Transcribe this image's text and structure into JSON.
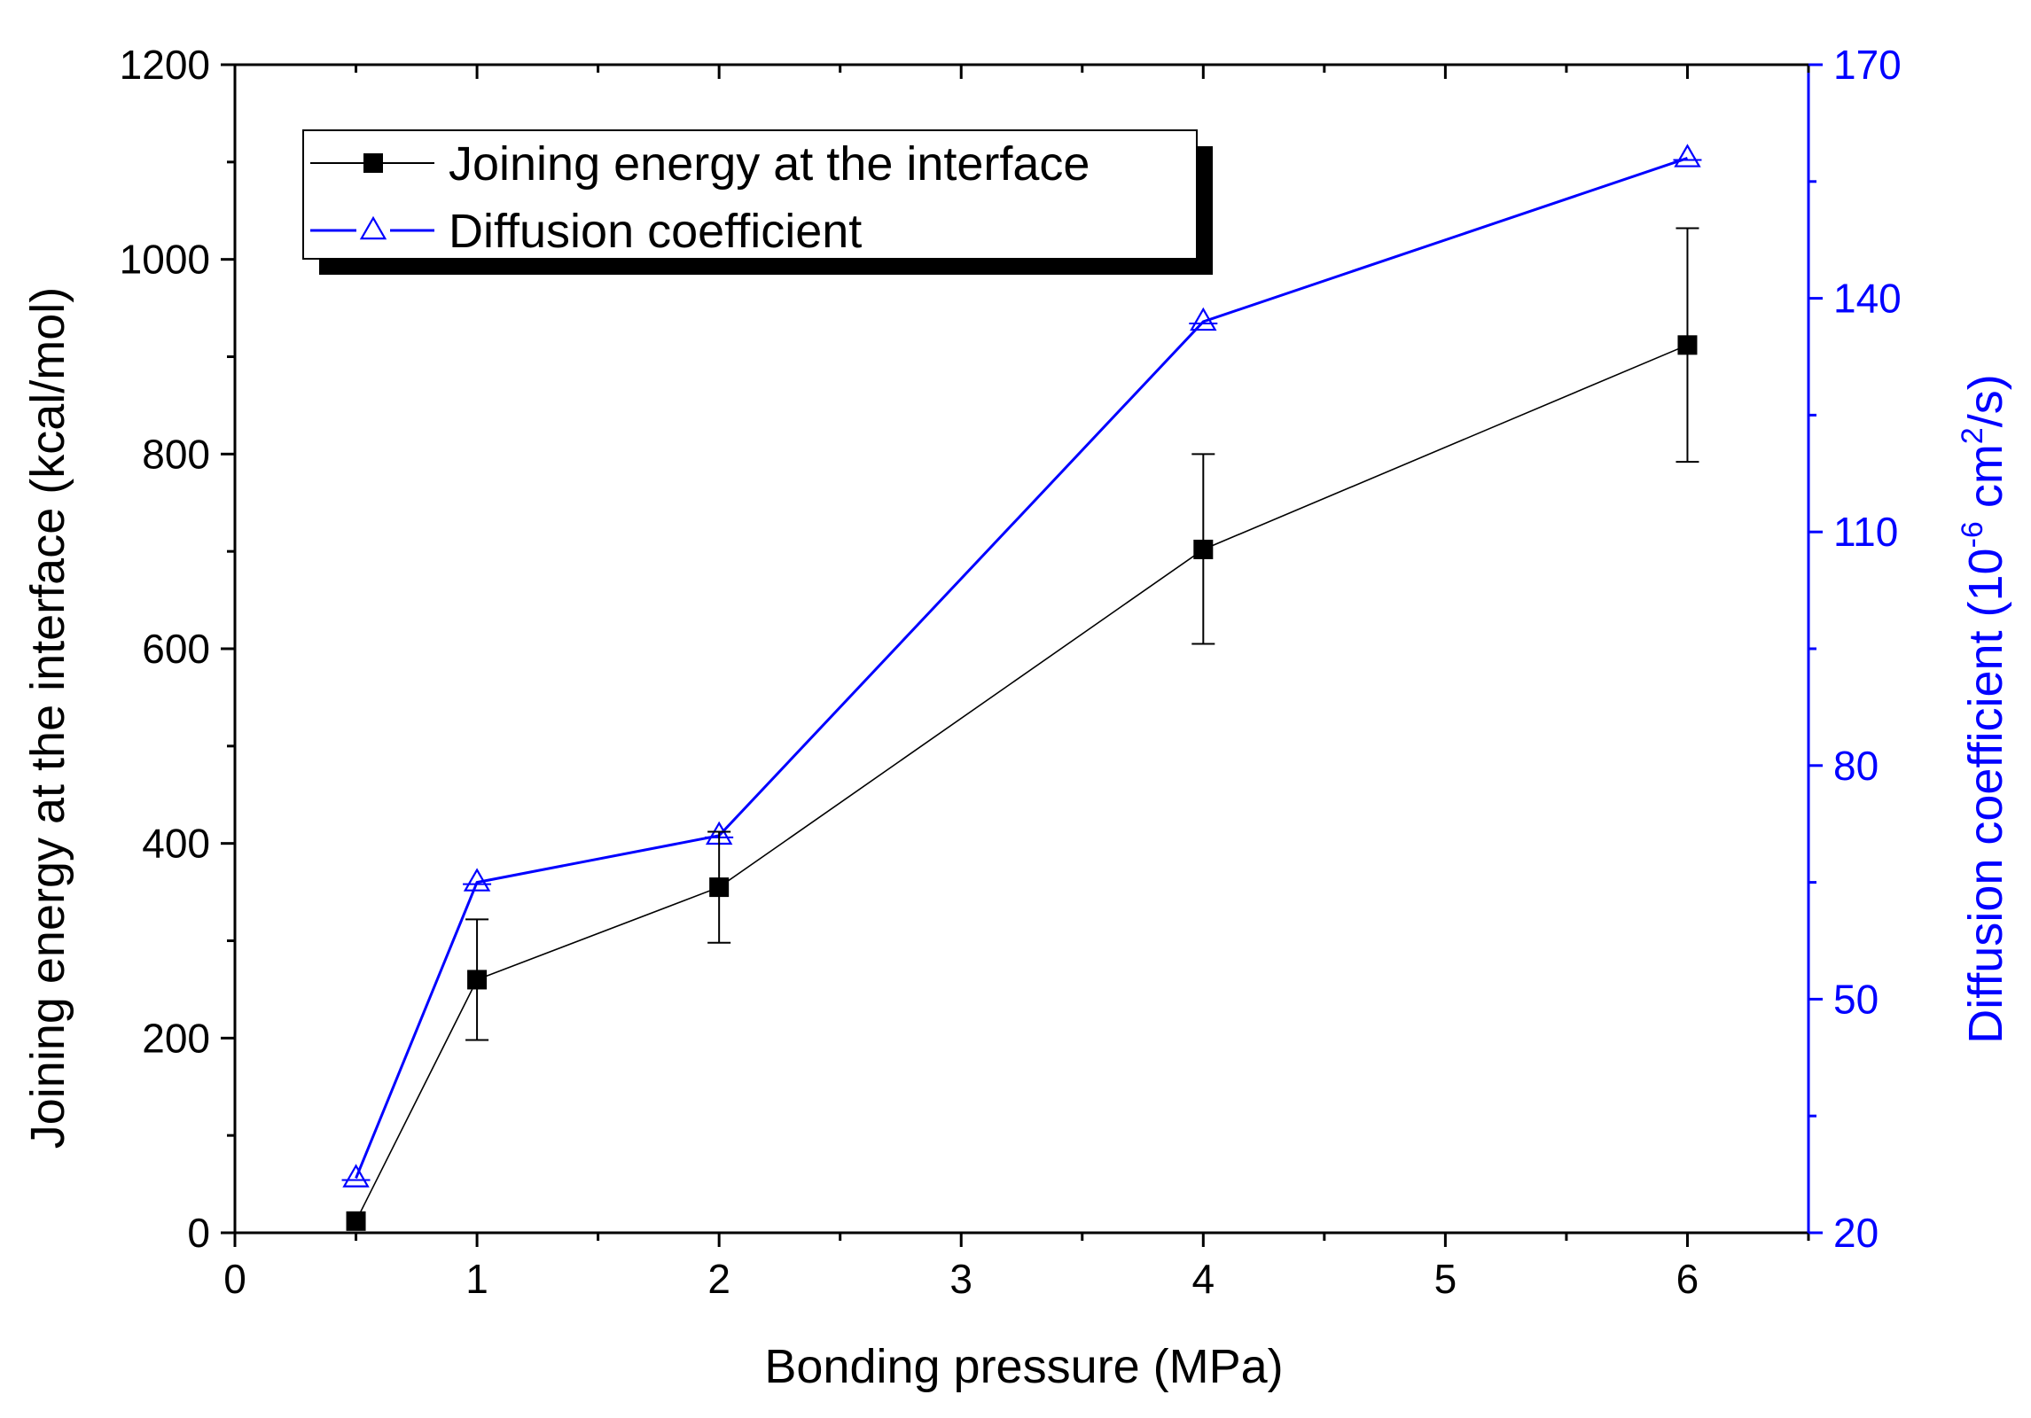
{
  "chart_data": {
    "type": "line",
    "xlabel": "Bonding pressure (MPa)",
    "xlim": [
      0,
      6.5
    ],
    "xticks": [
      "0",
      "1",
      "2",
      "3",
      "4",
      "5",
      "6"
    ],
    "y_left": {
      "label": "Joining energy at the interface (kcal/mol)",
      "lim": [
        0,
        1200
      ],
      "ticks": [
        "0",
        "200",
        "400",
        "600",
        "800",
        "1000",
        "1200"
      ]
    },
    "y_right": {
      "label_parts": {
        "main": "Diffusion coefficient (10",
        "exp1": "-6",
        "mid": " cm",
        "exp2": "2",
        "end": "/s)"
      },
      "lim": [
        20,
        170
      ],
      "ticks": [
        "20",
        "50",
        "80",
        "110",
        "140",
        "170"
      ],
      "color": "#0000ff"
    },
    "series": [
      {
        "name": "Joining energy at the interface",
        "axis": "left",
        "color": "#000000",
        "marker": "filled-square",
        "x": [
          0.5,
          1,
          2,
          4,
          6
        ],
        "y": [
          12,
          260,
          355,
          702,
          912
        ],
        "err_low": [
          0,
          198,
          298,
          605,
          792
        ],
        "err_high": [
          0,
          322,
          412,
          800,
          1032
        ]
      },
      {
        "name": "Diffusion coefficient",
        "axis": "right",
        "color": "#0000ff",
        "marker": "open-triangle",
        "x": [
          0.5,
          1,
          2,
          4,
          6
        ],
        "y": [
          27,
          65,
          71,
          137,
          158
        ]
      }
    ],
    "legend": {
      "position": "top-left",
      "items": [
        "Joining energy at the interface",
        "Diffusion coefficient"
      ]
    },
    "grid": false
  }
}
